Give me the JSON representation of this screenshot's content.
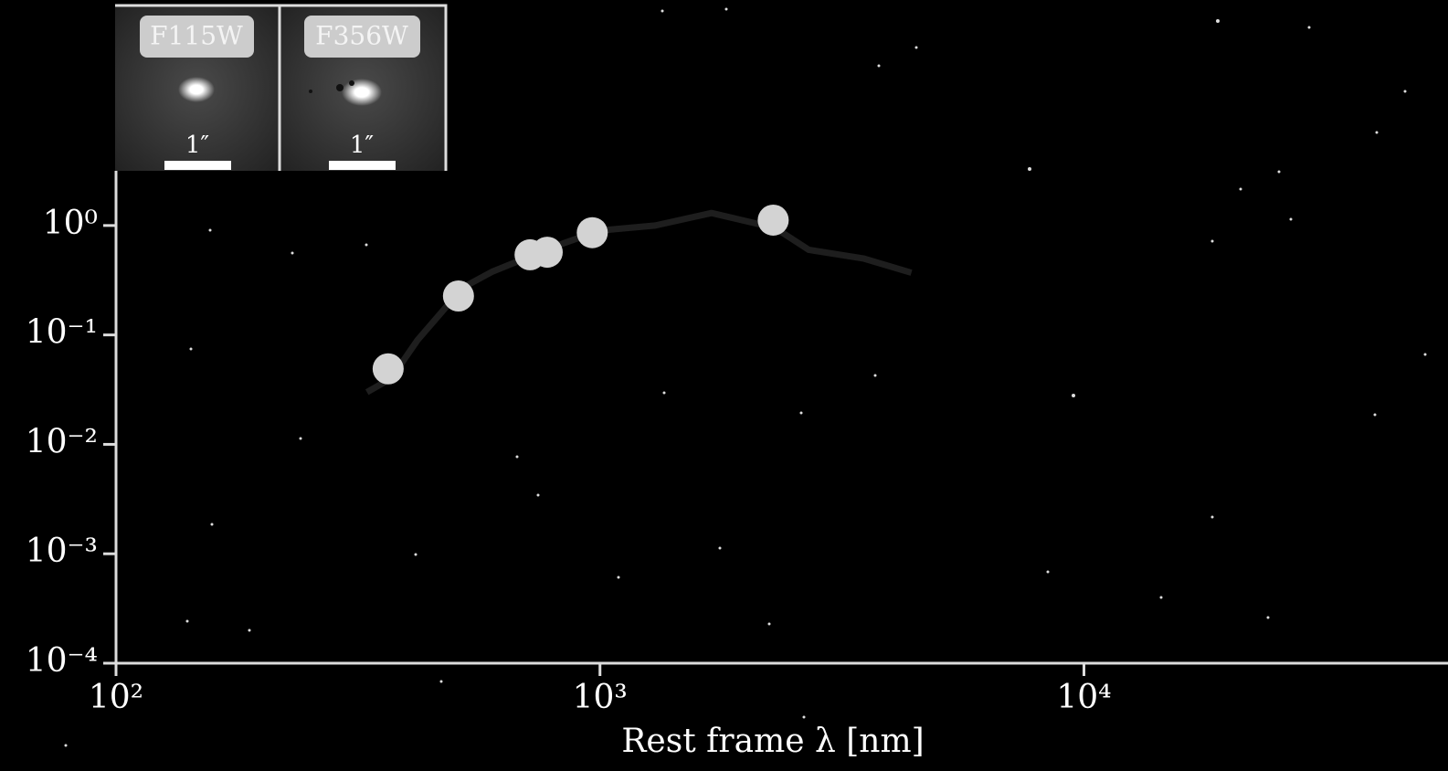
{
  "chart_data": {
    "type": "scatter",
    "x_label": "Rest frame λ [nm]",
    "xscale": "log",
    "yscale": "log",
    "xlim": [
      100,
      52500
    ],
    "ylim": [
      0.0001,
      3.16
    ],
    "xticks": [
      {
        "value": 100,
        "label": "10²"
      },
      {
        "value": 1000,
        "label": "10³"
      },
      {
        "value": 10000,
        "label": "10⁴"
      }
    ],
    "yticks": [
      {
        "value": 0.0001,
        "label": "10⁻⁴"
      },
      {
        "value": 0.001,
        "label": "10⁻³"
      },
      {
        "value": 0.01,
        "label": "10⁻²"
      },
      {
        "value": 0.1,
        "label": "10⁻¹"
      },
      {
        "value": 1,
        "label": "10⁰"
      }
    ],
    "x": [
      365,
      510,
      717,
      778,
      964,
      2280
    ],
    "values": [
      0.049,
      0.227,
      0.54,
      0.57,
      0.86,
      1.12
    ],
    "color": "#d3d3d3",
    "model": {
      "x": [
        330,
        370,
        420,
        470,
        520,
        600,
        700,
        850,
        1000,
        1300,
        1700,
        2300,
        2700,
        3500,
        4400
      ],
      "values": [
        0.03,
        0.04,
        0.09,
        0.16,
        0.27,
        0.38,
        0.5,
        0.7,
        0.9,
        1.0,
        1.3,
        0.95,
        0.6,
        0.5,
        0.37
      ],
      "color": "#1e1e1e"
    }
  },
  "insets": [
    {
      "label": "F115W",
      "scale": "1″"
    },
    {
      "label": "F356W",
      "scale": "1″"
    }
  ]
}
